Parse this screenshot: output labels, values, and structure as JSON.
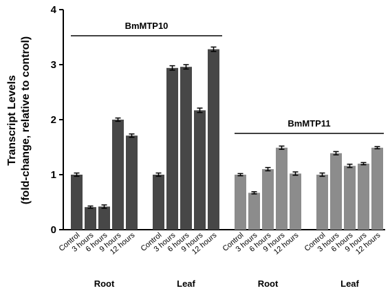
{
  "chart_data": {
    "type": "bar",
    "title": "",
    "xlabel": "",
    "ylabel_line1": "Transcript Levels",
    "ylabel_line2": "(fold-change, relative to control)",
    "ylim": [
      0,
      4
    ],
    "yticks": [
      "0",
      "1",
      "2",
      "3",
      "4"
    ],
    "categories": [
      "Control",
      "3 hours",
      "6 hours",
      "9 hours",
      "12 hours"
    ],
    "colors": {
      "BmMTP10": "#474747",
      "BmMTP11": "#8c8c8c"
    },
    "brackets": [
      {
        "label": "BmMTP10"
      },
      {
        "label": "BmMTP11"
      }
    ],
    "groups": [
      {
        "tissue": "Root",
        "gene": "BmMTP10",
        "values": [
          1.0,
          0.41,
          0.42,
          2.0,
          1.71
        ],
        "errors": [
          0.03,
          0.02,
          0.03,
          0.03,
          0.03
        ]
      },
      {
        "tissue": "Leaf",
        "gene": "BmMTP10",
        "values": [
          1.0,
          2.94,
          2.96,
          2.17,
          3.28
        ],
        "errors": [
          0.03,
          0.04,
          0.04,
          0.04,
          0.04
        ]
      },
      {
        "tissue": "Root",
        "gene": "BmMTP11",
        "values": [
          1.0,
          0.67,
          1.1,
          1.49,
          1.02
        ],
        "errors": [
          0.02,
          0.02,
          0.03,
          0.03,
          0.03
        ]
      },
      {
        "tissue": "Leaf",
        "gene": "BmMTP11",
        "values": [
          1.0,
          1.39,
          1.16,
          1.2,
          1.49
        ],
        "errors": [
          0.03,
          0.03,
          0.03,
          0.02,
          0.02
        ]
      }
    ]
  }
}
